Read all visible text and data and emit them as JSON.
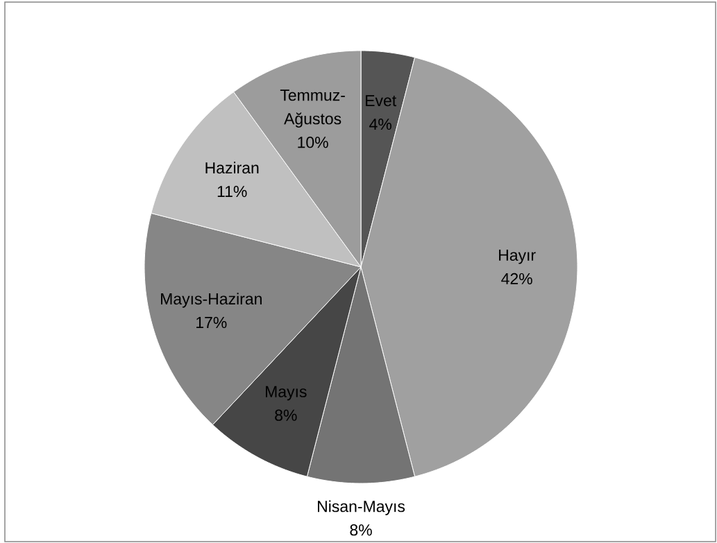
{
  "chart_data": {
    "type": "pie",
    "categories": [
      "Evet",
      "Hayır",
      "Nisan-Mayıs",
      "Mayıs",
      "Mayıs-Haziran",
      "Haziran",
      "Temmuz-Ağustos"
    ],
    "values": [
      4,
      42,
      8,
      8,
      17,
      11,
      10
    ],
    "colors": [
      "#555555",
      "#a0a0a0",
      "#747474",
      "#464646",
      "#868686",
      "#c0c0c0",
      "#9c9c9c"
    ],
    "value_labels": [
      "4%",
      "42%",
      "8%",
      "8%",
      "17%",
      "11%",
      "10%"
    ]
  }
}
